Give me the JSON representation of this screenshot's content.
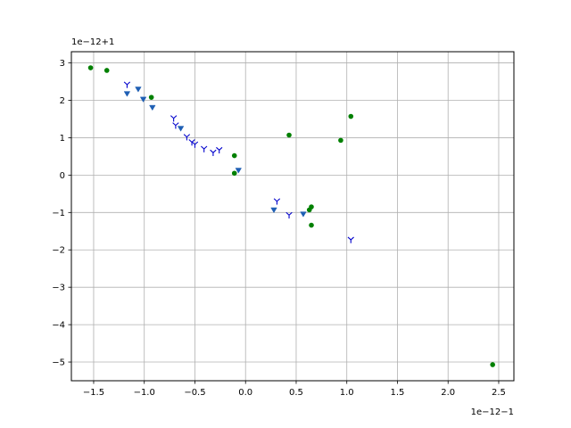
{
  "chart_data": {
    "type": "scatter",
    "x_offset_label": "1e−12−1",
    "y_offset_label": "1e−12+1",
    "xlim": [
      -1.72,
      2.65
    ],
    "ylim": [
      -5.5,
      3.3
    ],
    "grid": true,
    "x_ticks": [
      -1.5,
      -1.0,
      -0.5,
      0.0,
      0.5,
      1.0,
      1.5,
      2.0,
      2.5
    ],
    "x_tick_labels": [
      "−1.5",
      "−1.0",
      "−0.5",
      "0.0",
      "0.5",
      "1.0",
      "1.5",
      "2.0",
      "2.5"
    ],
    "y_ticks": [
      3,
      2,
      1,
      0,
      -1,
      -2,
      -3,
      -4,
      -5
    ],
    "y_tick_labels": [
      "3",
      "2",
      "1",
      "0",
      "−1",
      "−2",
      "−3",
      "−4",
      "−5"
    ],
    "series": [
      {
        "marker": "dot",
        "color": "#008000",
        "points": [
          [
            -1.53,
            2.87
          ],
          [
            -1.37,
            2.8
          ],
          [
            -0.93,
            2.08
          ],
          [
            -0.11,
            0.52
          ],
          [
            -0.11,
            0.05
          ],
          [
            0.43,
            1.07
          ],
          [
            0.63,
            -0.93
          ],
          [
            0.65,
            -0.85
          ],
          [
            0.65,
            -1.34
          ],
          [
            0.94,
            0.93
          ],
          [
            1.04,
            1.57
          ],
          [
            2.44,
            -5.07
          ]
        ]
      },
      {
        "marker": "tri_up",
        "color": "#0000cc",
        "points": [
          [
            -1.17,
            2.42
          ],
          [
            -0.71,
            1.52
          ],
          [
            -0.69,
            1.33
          ],
          [
            -0.58,
            1.02
          ],
          [
            -0.53,
            0.88
          ],
          [
            -0.5,
            0.82
          ],
          [
            -0.41,
            0.7
          ],
          [
            -0.32,
            0.6
          ],
          [
            -0.26,
            0.67
          ],
          [
            0.31,
            -0.7
          ],
          [
            0.43,
            -1.07
          ],
          [
            1.04,
            -1.73
          ]
        ]
      },
      {
        "marker": "triangle_down",
        "color": "#1f5fb4",
        "points": [
          [
            -1.17,
            2.18
          ],
          [
            -1.06,
            2.3
          ],
          [
            -1.01,
            2.03
          ],
          [
            -0.92,
            1.81
          ],
          [
            -0.64,
            1.25
          ],
          [
            -0.07,
            0.13
          ],
          [
            0.28,
            -0.93
          ],
          [
            0.57,
            -1.04
          ]
        ]
      }
    ]
  }
}
